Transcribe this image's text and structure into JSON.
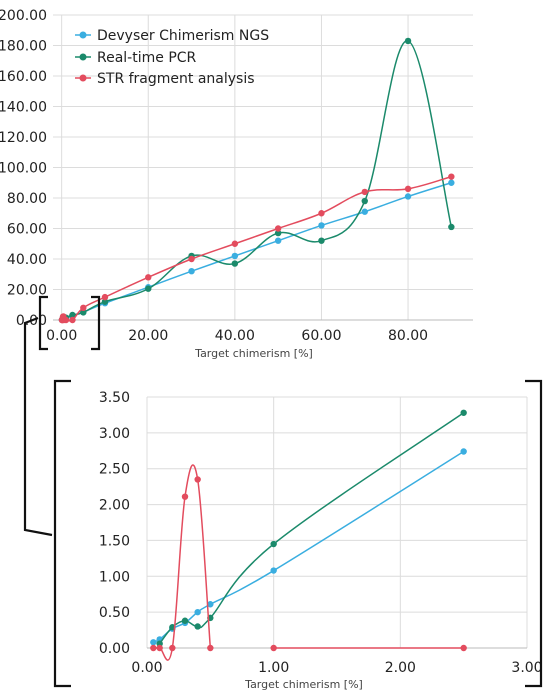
{
  "colors": {
    "devyser": "#3aaee0",
    "realtime": "#1b8a6b",
    "str": "#e34c5e",
    "grid": "#dcdcdc",
    "bracket": "#111111"
  },
  "chart_data": [
    {
      "id": "main",
      "type": "line",
      "xlabel": "Target chimerism [%]",
      "ylabel": "",
      "xlim": [
        -2,
        95
      ],
      "ylim": [
        0,
        200
      ],
      "xticks": [
        "0.00",
        "20.00",
        "40.00",
        "60.00",
        "80.00"
      ],
      "xtick_values": [
        0,
        20,
        40,
        60,
        80
      ],
      "yticks": [
        "0.00",
        "20.00",
        "40.00",
        "60.00",
        "80.00",
        "100.00",
        "120.00",
        "140.00",
        "160.00",
        "180.00",
        "200.00"
      ],
      "ytick_values": [
        0,
        20,
        40,
        60,
        80,
        100,
        120,
        140,
        160,
        180,
        200
      ],
      "grid": true,
      "legend": "top-left",
      "series": [
        {
          "name": "Devyser Chimerism NGS",
          "color_key": "devyser",
          "points": [
            [
              0.05,
              0.1
            ],
            [
              0.1,
              0.12
            ],
            [
              0.2,
              0.25
            ],
            [
              0.3,
              0.35
            ],
            [
              0.4,
              0.5
            ],
            [
              0.5,
              0.6
            ],
            [
              1,
              1.1
            ],
            [
              2.5,
              2.7
            ],
            [
              5,
              5.2
            ],
            [
              10,
              11
            ],
            [
              20,
              21.5
            ],
            [
              30,
              32
            ],
            [
              40,
              42
            ],
            [
              50,
              52
            ],
            [
              60,
              62
            ],
            [
              70,
              71
            ],
            [
              80,
              81
            ],
            [
              90,
              90
            ]
          ]
        },
        {
          "name": "Real-time PCR",
          "color_key": "realtime",
          "points": [
            [
              0.1,
              0.08
            ],
            [
              0.2,
              0.3
            ],
            [
              0.3,
              0.4
            ],
            [
              0.5,
              0.45
            ],
            [
              1,
              1.5
            ],
            [
              2.5,
              3.3
            ],
            [
              5,
              5
            ],
            [
              10,
              12
            ],
            [
              20,
              20.5
            ],
            [
              30,
              42
            ],
            [
              40,
              37
            ],
            [
              50,
              57
            ],
            [
              60,
              52
            ],
            [
              70,
              78
            ],
            [
              80,
              183
            ],
            [
              90,
              61
            ]
          ]
        },
        {
          "name": "STR fragment analysis",
          "color_key": "str",
          "points": [
            [
              0.05,
              0
            ],
            [
              0.1,
              0
            ],
            [
              0.2,
              0
            ],
            [
              0.3,
              2.1
            ],
            [
              0.4,
              2.35
            ],
            [
              0.5,
              0
            ],
            [
              1,
              0
            ],
            [
              2.5,
              0
            ],
            [
              5,
              8
            ],
            [
              10,
              15
            ],
            [
              20,
              28
            ],
            [
              30,
              40
            ],
            [
              40,
              50
            ],
            [
              50,
              60
            ],
            [
              60,
              70
            ],
            [
              70,
              84
            ],
            [
              80,
              86
            ],
            [
              90,
              94
            ]
          ]
        }
      ]
    },
    {
      "id": "inset",
      "type": "line",
      "xlabel": "Target chimerism [%]",
      "ylabel": "",
      "xlim": [
        0,
        3
      ],
      "ylim": [
        0,
        3.5
      ],
      "xticks": [
        "0.00",
        "1.00",
        "2.00",
        "3.00"
      ],
      "xtick_values": [
        0,
        1,
        2,
        3
      ],
      "yticks": [
        "0.00",
        "0.50",
        "1.00",
        "1.50",
        "2.00",
        "2.50",
        "3.00",
        "3.50"
      ],
      "ytick_values": [
        0,
        0.5,
        1,
        1.5,
        2,
        2.5,
        3,
        3.5
      ],
      "grid": true,
      "series": [
        {
          "name": "Devyser Chimerism NGS",
          "color_key": "devyser",
          "points": [
            [
              0.05,
              0.08
            ],
            [
              0.1,
              0.12
            ],
            [
              0.2,
              0.27
            ],
            [
              0.3,
              0.35
            ],
            [
              0.4,
              0.5
            ],
            [
              0.5,
              0.61
            ],
            [
              1,
              1.08
            ],
            [
              2.5,
              2.74
            ]
          ]
        },
        {
          "name": "Real-time PCR",
          "color_key": "realtime",
          "points": [
            [
              0.1,
              0.06
            ],
            [
              0.2,
              0.29
            ],
            [
              0.3,
              0.38
            ],
            [
              0.4,
              0.3
            ],
            [
              0.5,
              0.42
            ],
            [
              1,
              1.45
            ],
            [
              2.5,
              3.28
            ]
          ]
        },
        {
          "name": "STR fragment analysis",
          "color_key": "str",
          "segments": [
            [
              [
                0.05,
                0
              ],
              [
                0.1,
                0
              ],
              [
                0.2,
                0
              ],
              [
                0.3,
                2.11
              ],
              [
                0.4,
                2.35
              ],
              [
                0.5,
                0
              ]
            ],
            [
              [
                1,
                0
              ],
              [
                2.5,
                0
              ]
            ]
          ]
        }
      ]
    }
  ]
}
